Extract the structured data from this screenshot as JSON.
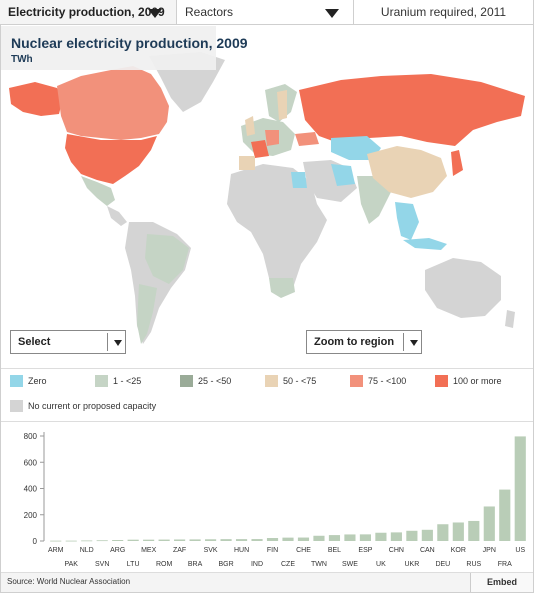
{
  "tabs": [
    {
      "label": "Electricity production, 2009"
    },
    {
      "label": "Reactors"
    },
    {
      "label": "Uranium required, 2011"
    }
  ],
  "map": {
    "title": "Nuclear electricity production, 2009",
    "unit": "TWh",
    "select_label": "Select",
    "zoom_label": "Zoom to region",
    "colors": {
      "zero": "#93d6e8",
      "lt25": "#c5d4c5",
      "25_50": "#9aab98",
      "50_75": "#e9d3b5",
      "75_100": "#f2917b",
      "100plus": "#f26f55",
      "none": "#d4d4d4"
    }
  },
  "legend": {
    "items": [
      {
        "label": "Zero",
        "color": "#93d6e8"
      },
      {
        "label": "1 - <25",
        "color": "#c5d4c5"
      },
      {
        "label": "25 - <50",
        "color": "#9aab98"
      },
      {
        "label": "50 - <75",
        "color": "#e9d3b5"
      },
      {
        "label": "75 - <100",
        "color": "#f2917b"
      },
      {
        "label": "100 or more",
        "color": "#f26f55"
      },
      {
        "label": "No current or proposed capacity",
        "color": "#d4d4d4"
      }
    ]
  },
  "chart_data": {
    "type": "bar",
    "categories": [
      "ARM",
      "PAK",
      "NLD",
      "SVN",
      "ARG",
      "LTU",
      "MEX",
      "ROM",
      "ZAF",
      "BRA",
      "SVK",
      "BGR",
      "HUN",
      "IND",
      "FIN",
      "CZE",
      "CHE",
      "TWN",
      "BEL",
      "SWE",
      "ESP",
      "UK",
      "CHN",
      "UKR",
      "CAN",
      "DEU",
      "KOR",
      "RUS",
      "JPN",
      "FRA",
      "US"
    ],
    "values": [
      2.5,
      2.6,
      4,
      5.5,
      7.6,
      10,
      10.1,
      10.8,
      11.6,
      12.2,
      13.1,
      14.2,
      14.3,
      14.8,
      22.6,
      25.7,
      26.3,
      39.9,
      45,
      50,
      50.6,
      62.9,
      65.7,
      77.9,
      85.3,
      127.7,
      141.1,
      152.8,
      263.1,
      391.7,
      796.9
    ],
    "xlabel": "",
    "ylabel": "",
    "ylim": [
      0,
      800
    ],
    "yticks": [
      0,
      200,
      400,
      600,
      800
    ],
    "bar_color": "#b9cdb7",
    "grid": false
  },
  "footer": {
    "source": "Source: World Nuclear Association",
    "embed_label": "Embed"
  }
}
